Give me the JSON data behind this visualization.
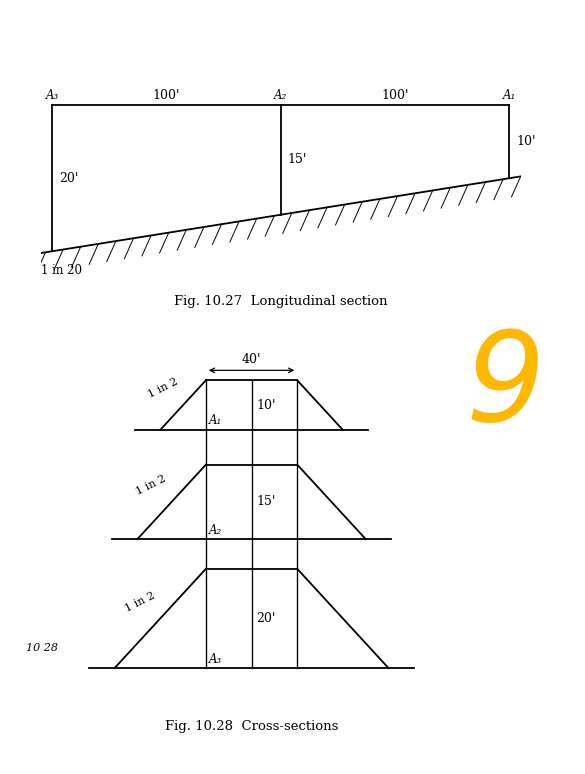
{
  "fig_title1": "Fig. 10.27  Longitudinal section",
  "fig_title2": "Fig. 10.28  Cross-sections",
  "background": "#ffffff",
  "line_color": "#000000",
  "gold_color": "#FFB800",
  "lw": 1.3,
  "fig1_label_A3": "A₃",
  "fig1_label_A2": "A₂",
  "fig1_label_A1": "A₁",
  "fig2_label_A1": "A₁",
  "fig2_label_A2": "A₂",
  "fig2_label_A3": "A₃",
  "fig_label_1028": "10 28"
}
